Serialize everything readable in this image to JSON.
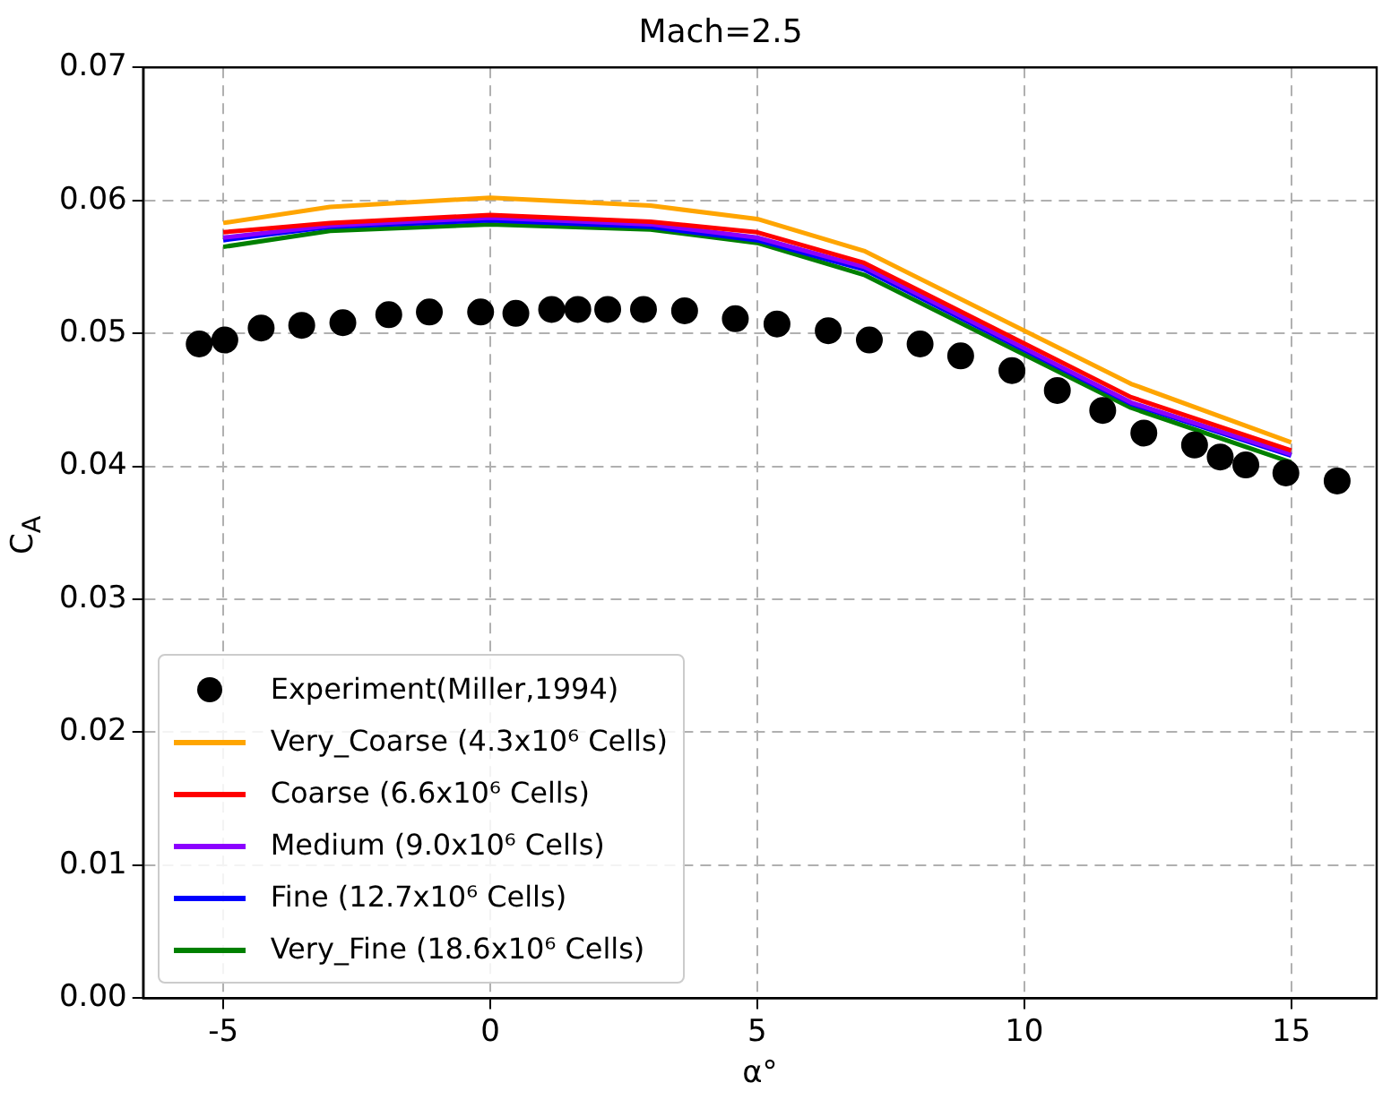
{
  "chart_data": {
    "type": "line",
    "title": "Mach=2.5",
    "xlabel": "α°",
    "ylabel": "C$_{A}$",
    "xlim": [
      -6.5,
      16.6
    ],
    "xticks": [
      -5,
      0,
      5,
      10,
      15
    ],
    "ylim": [
      0,
      0.07
    ],
    "yticks": [
      {
        "value": 0,
        "label": "0.00"
      },
      0.01,
      0.02,
      0.03,
      0.04,
      0.05,
      0.06,
      0.07
    ],
    "grid": true,
    "legend": "bottom left",
    "series": [
      {
        "name": "Experiment(Miller,1994)",
        "type": "scatter",
        "marker": "circle",
        "color": "#000000",
        "x": [
          -5.45,
          -4.97,
          -4.29,
          -3.53,
          -2.76,
          -1.9,
          -1.14,
          -0.18,
          0.48,
          1.15,
          1.64,
          2.2,
          2.87,
          3.64,
          4.59,
          5.37,
          6.33,
          7.1,
          8.05,
          8.81,
          9.77,
          10.62,
          11.47,
          12.24,
          13.19,
          13.67,
          14.15,
          14.9,
          15.86
        ],
        "values": [
          0.0492,
          0.0495,
          0.0504,
          0.0506,
          0.0508,
          0.0514,
          0.0516,
          0.0516,
          0.0515,
          0.0518,
          0.0518,
          0.0518,
          0.0518,
          0.0517,
          0.0511,
          0.0507,
          0.0502,
          0.0495,
          0.0492,
          0.0483,
          0.0472,
          0.0457,
          0.0442,
          0.0425,
          0.0416,
          0.0407,
          0.0401,
          0.0395,
          0.0389
        ]
      },
      {
        "name": "Very_Coarse (4.3x10⁶ Cells)",
        "marker": "none",
        "color": "#ffa500",
        "x": [
          -5,
          -3,
          0,
          3,
          5,
          7,
          12,
          15
        ],
        "values": [
          0.0583,
          0.0595,
          0.0602,
          0.0596,
          0.0586,
          0.0562,
          0.0462,
          0.0418
        ]
      },
      {
        "name": "Coarse (6.6x10⁶ Cells)",
        "marker": "none",
        "color": "#ff0000",
        "x": [
          -5,
          -3,
          0,
          3,
          5,
          7,
          12,
          15
        ],
        "values": [
          0.0576,
          0.0583,
          0.0589,
          0.0584,
          0.0576,
          0.0553,
          0.0452,
          0.0412
        ]
      },
      {
        "name": "Medium (9.0x10⁶ Cells)",
        "marker": "none",
        "color": "#8b00ff",
        "x": [
          -5,
          -3,
          0,
          3,
          5,
          7,
          12,
          15
        ],
        "values": [
          0.0572,
          0.0581,
          0.0587,
          0.0582,
          0.0572,
          0.055,
          0.0448,
          0.0409
        ]
      },
      {
        "name": "Fine (12.7x10⁶ Cells)",
        "marker": "none",
        "color": "#0000ff",
        "x": [
          -5,
          -3,
          0,
          3,
          5,
          7,
          12,
          15
        ],
        "values": [
          0.057,
          0.058,
          0.0585,
          0.058,
          0.057,
          0.0548,
          0.0447,
          0.0408
        ]
      },
      {
        "name": "Very_Fine (18.6x10⁶ Cells)",
        "marker": "none",
        "color": "#008000",
        "x": [
          -5,
          -3,
          0,
          3,
          5,
          7,
          12,
          15
        ],
        "values": [
          0.0565,
          0.0577,
          0.0582,
          0.0578,
          0.0568,
          0.0544,
          0.0444,
          0.0403
        ]
      }
    ]
  }
}
